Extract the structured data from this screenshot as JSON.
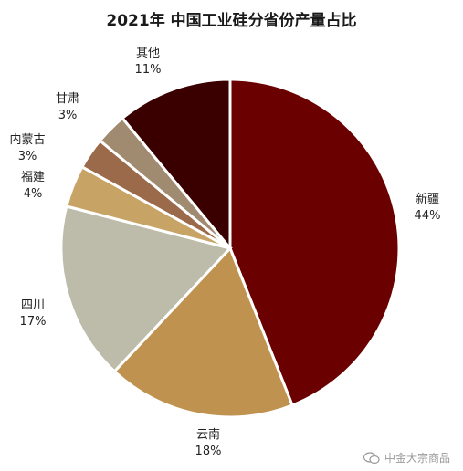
{
  "chart_data": {
    "type": "pie",
    "title": "2021年 中国工业硅分省份产量占比",
    "slices": [
      {
        "name": "新疆",
        "value": 44,
        "label": "44%",
        "color": "#6b0000"
      },
      {
        "name": "云南",
        "value": 18,
        "label": "18%",
        "color": "#c0924f"
      },
      {
        "name": "四川",
        "value": 17,
        "label": "17%",
        "color": "#bdbbaa"
      },
      {
        "name": "福建",
        "value": 4,
        "label": "4%",
        "color": "#c7a466"
      },
      {
        "name": "内蒙古",
        "value": 3,
        "label": "3%",
        "color": "#9a6a4a"
      },
      {
        "name": "甘肃",
        "value": 3,
        "label": "3%",
        "color": "#a08a70"
      },
      {
        "name": "其他",
        "value": 11,
        "label": "11%",
        "color": "#3a0000"
      }
    ]
  },
  "watermark": {
    "text": "中金大宗商品",
    "icon": "wechat-icon"
  }
}
